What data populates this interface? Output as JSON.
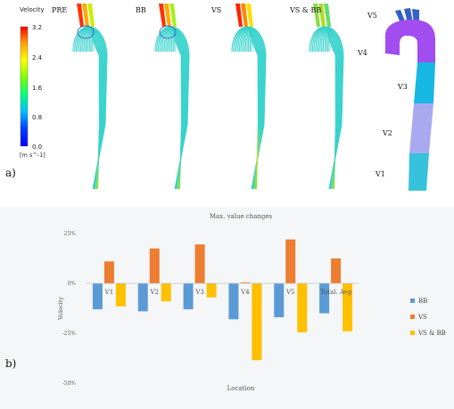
{
  "panel_a": {
    "label": "a)",
    "colorbar": {
      "title": "Velocity",
      "ticks": [
        "3.2",
        "2.4",
        "1.6",
        "0.8",
        "0.0"
      ],
      "unit": "[m s^-1]",
      "colors": [
        "#ff0000",
        "#ffa000",
        "#ffff00",
        "#80ff00",
        "#00ff80",
        "#00c0ff",
        "#0040ff",
        "#0000ff"
      ]
    },
    "cases": [
      "PRE",
      "BB",
      "VS",
      "VS & BB"
    ],
    "segments": [
      "V5",
      "V4",
      "V3",
      "V2",
      "V1"
    ],
    "segment_colors": {
      "V5": "#3560c8",
      "V4": "#a24df0",
      "V3": "#16b7e3",
      "V2": "#a9a9f0",
      "V1": "#36c2dc"
    },
    "streamline_main_color": "#36d2cc"
  },
  "panel_b": {
    "label": "b)"
  },
  "chart_data": {
    "type": "bar",
    "title": "Max. value changes",
    "xlabel": "Location",
    "ylabel": "Velocity",
    "categories": [
      "V1",
      "V2",
      "V3",
      "V4",
      "V5",
      "Total. Avg"
    ],
    "series": [
      {
        "name": "BB",
        "color": "#5b9bd5",
        "values": [
          -13,
          -14,
          -13,
          -18,
          -17,
          -15
        ]
      },
      {
        "name": "VS",
        "color": "#ed7d31",
        "values": [
          11,
          17.5,
          19.5,
          0.5,
          22,
          12.5
        ]
      },
      {
        "name": "VS & BB",
        "color": "#ffc000",
        "values": [
          -11.5,
          -9,
          -7,
          -38.5,
          -24.5,
          -24
        ]
      }
    ],
    "y_ticks": [
      "25%",
      "0%",
      "-25%",
      "-50%"
    ],
    "ylim": [
      -50,
      25
    ],
    "grid": false,
    "legend_position": "right"
  }
}
